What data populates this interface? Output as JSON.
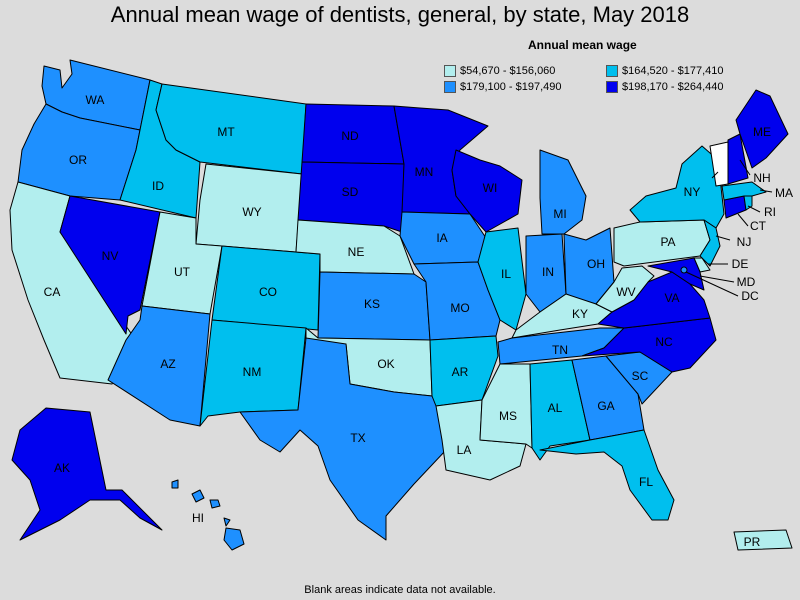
{
  "title": "Annual mean wage of dentists, general, by state, May 2018",
  "legend": {
    "title": "Annual mean wage",
    "items": [
      {
        "range": "$54,670 - $156,060",
        "color": "#b2eeee"
      },
      {
        "range": "$164,520 - $177,410",
        "color": "#00bfee"
      },
      {
        "range": "$179,100 - $197,490",
        "color": "#1e90ff"
      },
      {
        "range": "$198,170 - $264,440",
        "color": "#0000ee"
      }
    ]
  },
  "no_data_color": "#ffffff",
  "footnote": "Blank areas indicate data not available.",
  "states": {
    "WA": 2,
    "OR": 2,
    "CA": 0,
    "NV": 3,
    "ID": 1,
    "MT": 1,
    "WY": 0,
    "UT": 0,
    "AZ": 2,
    "CO": 1,
    "NM": 1,
    "ND": 3,
    "SD": 3,
    "NE": 0,
    "KS": 2,
    "OK": 0,
    "TX": 2,
    "MN": 3,
    "IA": 2,
    "MO": 2,
    "AR": 1,
    "LA": 0,
    "WI": 3,
    "IL": 1,
    "MI": 2,
    "IN": 2,
    "OH": 2,
    "KY": 0,
    "TN": 2,
    "MS": 0,
    "AL": 1,
    "GA": 2,
    "FL": 1,
    "SC": 2,
    "NC": 3,
    "VA": 3,
    "WV": 0,
    "PA": 0,
    "NY": 1,
    "NJ": 1,
    "DE": 0,
    "MD": 3,
    "DC": 2,
    "CT": 3,
    "RI": 1,
    "MA": 1,
    "VT": null,
    "NH": 3,
    "ME": 3,
    "AK": 3,
    "HI": 2,
    "PR": 0
  }
}
